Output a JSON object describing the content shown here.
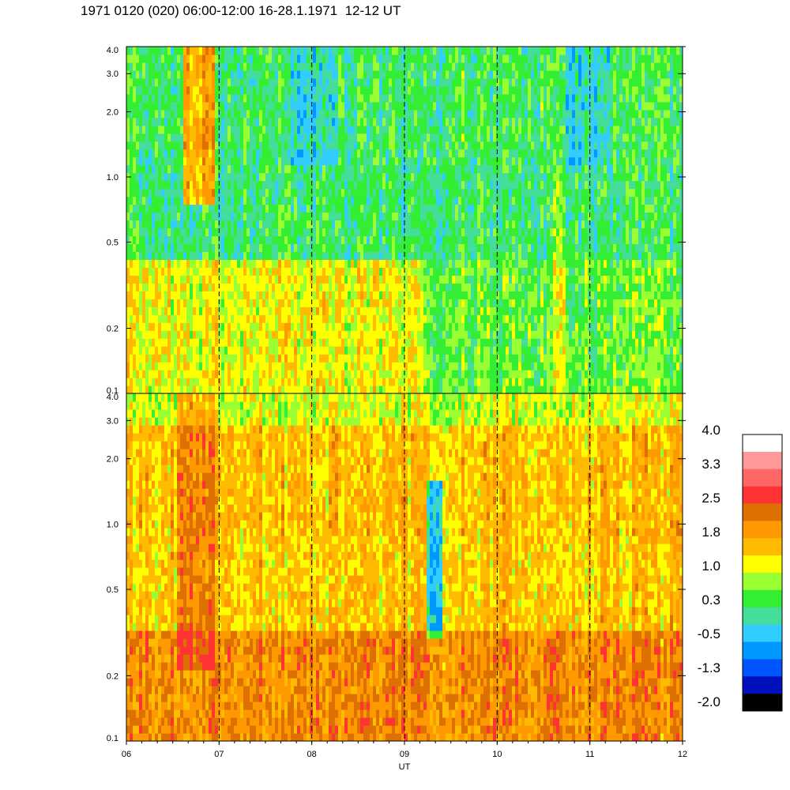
{
  "title": "1971 0120 (020) 06:00-12:00 16-28.1.1971  12-12 UT",
  "chart_data": {
    "type": "heatmap",
    "title": "1971 0120 (020) 06:00-12:00 16-28.1.1971  12-12 UT",
    "xlabel": "UT",
    "x_ticks": [
      "06",
      "07",
      "08",
      "09",
      "10",
      "11",
      "12"
    ],
    "xlim": [
      6,
      12
    ],
    "y_scale": "log",
    "ylim": [
      0.1,
      4.0
    ],
    "y_ticks": [
      "0.1",
      "0.2",
      "0.5",
      "1.0",
      "2.0",
      "3.0",
      "4.0"
    ],
    "panels": [
      {
        "name": "upper",
        "y_ticks": [
          "0.1",
          "0.2",
          "0.5",
          "1.0",
          "2.0",
          "3.0",
          "4.0"
        ],
        "dominant_levels": {
          "0.1-0.3": "1.0 (yellow) before 09, 0.3 (green) after 09",
          "0.3-1.0": "-0.5 to 0.3 (teal/green)",
          "1.0-4.0": "-0.5 to 0.3 with blue patches near 08 and 10.7-11"
        },
        "features": [
          "red/orange streak near 06:40",
          "bright streak near 10:45"
        ]
      },
      {
        "name": "lower",
        "y_ticks": [
          "0.1",
          "0.2",
          "0.5",
          "1.0",
          "2.0",
          "3.0",
          "4.0"
        ],
        "dominant_levels": {
          "0.1-0.3": "1.8 to 2.5 (orange/dark orange)",
          "0.3-1.0": "1.0 to 1.8 (yellow/orange)",
          "1.0-4.0": "1.0 to 1.8 with green at top"
        },
        "features": [
          "red streak near 06:40",
          "blue streak near 09:20"
        ]
      }
    ],
    "dashed_gridlines_x": [
      "07",
      "08",
      "09",
      "10",
      "11"
    ],
    "colorbar": {
      "labels": [
        "4.0",
        "3.3",
        "2.5",
        "1.8",
        "1.0",
        "0.3",
        "-0.5",
        "-1.3",
        "-2.0"
      ],
      "colors": [
        "#ffffff",
        "#ff9999",
        "#ff6666",
        "#ff3333",
        "#dd7000",
        "#ff9900",
        "#ffbb00",
        "#ffff00",
        "#99ff33",
        "#33ee33",
        "#44dd99",
        "#33ccff",
        "#0099ff",
        "#0055ff",
        "#0011bb",
        "#000000"
      ]
    }
  }
}
